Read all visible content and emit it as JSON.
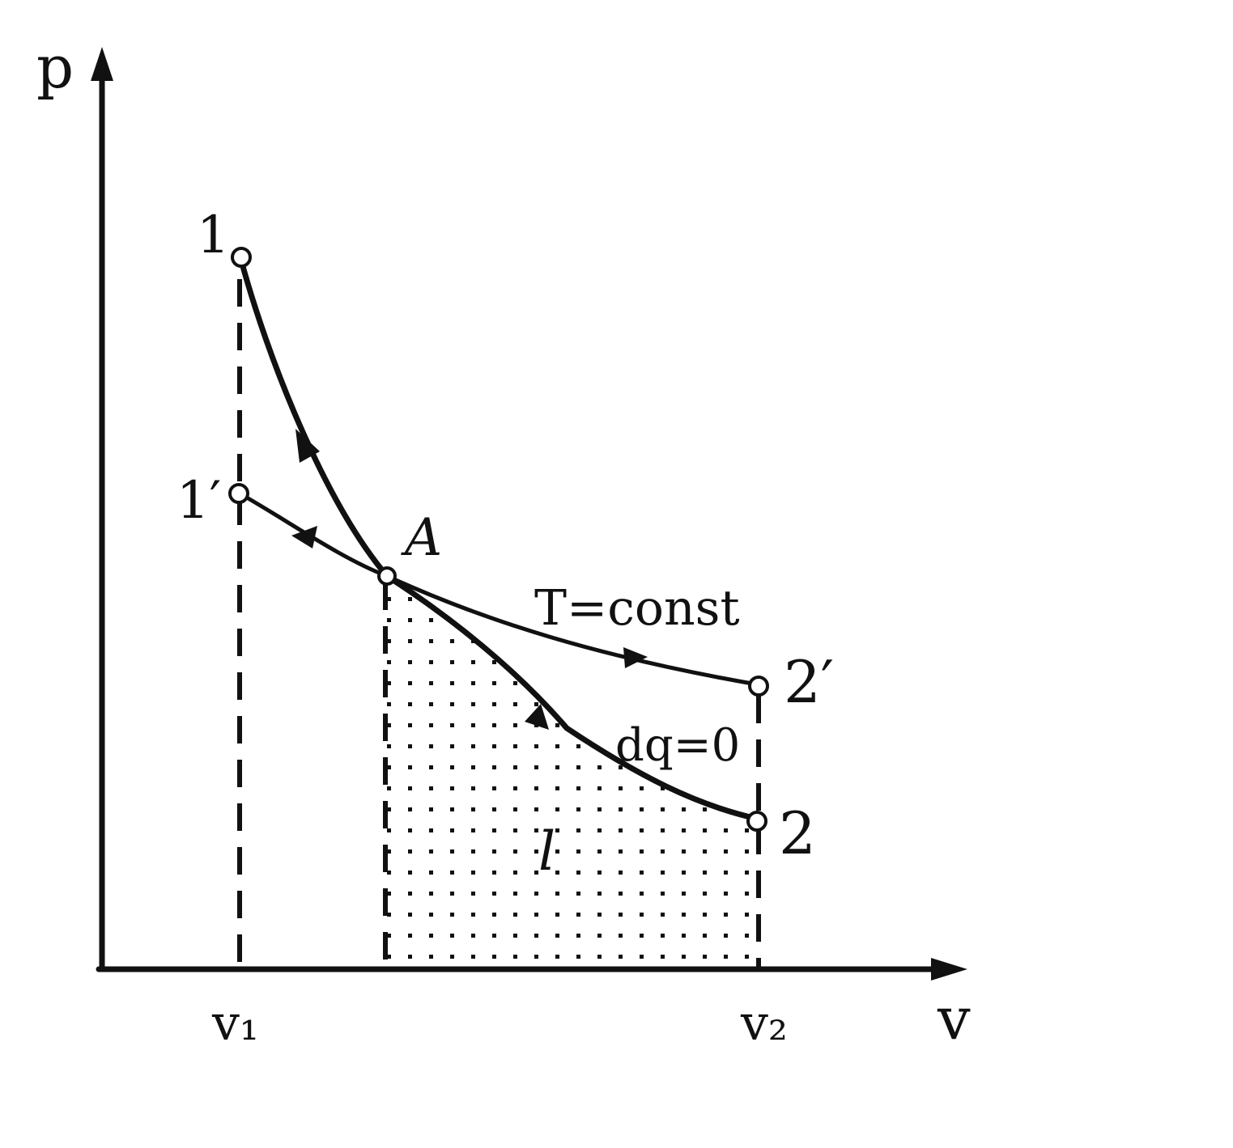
{
  "axes": {
    "y_label": "p",
    "x_label": "v",
    "x_tick_1": "v₁",
    "x_tick_2": "v₂"
  },
  "points": {
    "p1": "1",
    "p1_prime": "1′",
    "pA": "A",
    "p2": "2",
    "p2_prime": "2′"
  },
  "curves": {
    "isotherm": "T=const",
    "adiabat": "dq=0"
  },
  "area_label": "l",
  "colors": {
    "ink": "#111111",
    "background": "#ffffff"
  }
}
